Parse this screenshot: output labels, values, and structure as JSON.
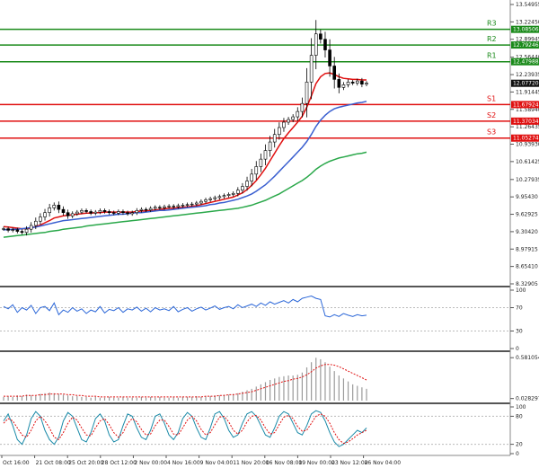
{
  "chart_data": {
    "type": "candlestick",
    "price_axis": {
      "ticks": [
        "13.54955",
        "13.22450",
        "12.89945",
        "12.56440",
        "12.23935",
        "11.91445",
        "11.58940",
        "11.26435",
        "10.93930",
        "10.61425",
        "10.27935",
        "9.95430",
        "9.62925",
        "9.30420",
        "8.97915",
        "8.65410",
        "8.32905"
      ],
      "ylim": [
        8.32905,
        13.54955
      ],
      "current_price": "12.07720"
    },
    "levels": [
      {
        "name": "R3",
        "value": "13.08506",
        "color": "#1a8a1a"
      },
      {
        "name": "R2",
        "value": "12.79246",
        "color": "#1a8a1a"
      },
      {
        "name": "R1",
        "value": "12.47988",
        "color": "#1a8a1a"
      },
      {
        "name": "S1",
        "value": "11.67924",
        "color": "#e01010"
      },
      {
        "name": "S2",
        "value": "11.37034",
        "color": "#e01010"
      },
      {
        "name": "S3",
        "value": "11.05274",
        "color": "#e01010"
      }
    ],
    "x_ticks": [
      "Oct 16:00",
      "21 Oct 08:00",
      "25 Oct 20:00",
      "28 Oct 12:00",
      "2 Nov 00:00",
      "4 Nov 16:00",
      "9 Nov 04:00",
      "11 Nov 20:00",
      "16 Nov 08:00",
      "19 Nov 00:00",
      "23 Nov 12:00",
      "26 Nov 04:00"
    ],
    "ohlc_close": [
      9.36,
      9.33,
      9.34,
      9.31,
      9.29,
      9.35,
      9.42,
      9.5,
      9.58,
      9.66,
      9.75,
      9.8,
      9.72,
      9.66,
      9.6,
      9.64,
      9.67,
      9.7,
      9.68,
      9.65,
      9.67,
      9.7,
      9.68,
      9.66,
      9.65,
      9.68,
      9.66,
      9.64,
      9.66,
      9.7,
      9.72,
      9.71,
      9.74,
      9.76,
      9.75,
      9.77,
      9.78,
      9.77,
      9.79,
      9.8,
      9.81,
      9.82,
      9.84,
      9.87,
      9.9,
      9.92,
      9.94,
      9.96,
      9.98,
      10.0,
      10.02,
      10.08,
      10.15,
      10.25,
      10.38,
      10.52,
      10.66,
      10.82,
      10.98,
      11.12,
      11.25,
      11.35,
      11.4,
      11.45,
      11.55,
      11.7,
      12.1,
      12.6,
      13.0,
      12.9,
      12.7,
      12.4,
      12.15,
      12.0,
      12.05,
      12.1,
      12.08,
      12.12,
      12.06,
      12.08
    ],
    "moving_averages": [
      {
        "color": "#e01010",
        "values": [
          9.4,
          9.39,
          9.38,
          9.37,
          9.36,
          9.36,
          9.37,
          9.4,
          9.43,
          9.47,
          9.51,
          9.56,
          9.58,
          9.6,
          9.61,
          9.62,
          9.63,
          9.64,
          9.65,
          9.65,
          9.66,
          9.66,
          9.67,
          9.67,
          9.67,
          9.67,
          9.67,
          9.67,
          9.67,
          9.68,
          9.69,
          9.69,
          9.7,
          9.71,
          9.72,
          9.73,
          9.74,
          9.74,
          9.75,
          9.76,
          9.77,
          9.78,
          9.79,
          9.81,
          9.83,
          9.85,
          9.87,
          9.89,
          9.91,
          9.93,
          9.95,
          9.99,
          10.03,
          10.09,
          10.17,
          10.26,
          10.37,
          10.49,
          10.63,
          10.77,
          10.91,
          11.04,
          11.15,
          11.25,
          11.35,
          11.46,
          11.63,
          11.84,
          12.07,
          12.2,
          12.26,
          12.27,
          12.24,
          12.2,
          12.17,
          12.16,
          12.15,
          12.15,
          12.14,
          12.14
        ]
      },
      {
        "color": "#3a5fd0",
        "values": [
          9.34,
          9.34,
          9.35,
          9.35,
          9.36,
          9.37,
          9.38,
          9.39,
          9.41,
          9.43,
          9.45,
          9.47,
          9.49,
          9.51,
          9.52,
          9.53,
          9.54,
          9.55,
          9.56,
          9.57,
          9.58,
          9.59,
          9.6,
          9.61,
          9.62,
          9.63,
          9.63,
          9.64,
          9.65,
          9.66,
          9.66,
          9.67,
          9.68,
          9.69,
          9.7,
          9.7,
          9.71,
          9.72,
          9.73,
          9.74,
          9.75,
          9.76,
          9.77,
          9.78,
          9.79,
          9.81,
          9.82,
          9.84,
          9.85,
          9.87,
          9.89,
          9.91,
          9.94,
          9.97,
          10.01,
          10.06,
          10.12,
          10.18,
          10.26,
          10.34,
          10.43,
          10.52,
          10.61,
          10.7,
          10.79,
          10.88,
          10.99,
          11.12,
          11.27,
          11.39,
          11.48,
          11.55,
          11.6,
          11.63,
          11.65,
          11.67,
          11.69,
          11.71,
          11.72,
          11.74
        ]
      },
      {
        "color": "#2aa84a",
        "values": [
          9.2,
          9.21,
          9.22,
          9.23,
          9.24,
          9.25,
          9.26,
          9.27,
          9.28,
          9.29,
          9.31,
          9.32,
          9.33,
          9.35,
          9.36,
          9.37,
          9.38,
          9.39,
          9.41,
          9.42,
          9.43,
          9.44,
          9.45,
          9.46,
          9.47,
          9.48,
          9.49,
          9.5,
          9.51,
          9.52,
          9.53,
          9.54,
          9.55,
          9.56,
          9.57,
          9.58,
          9.59,
          9.6,
          9.61,
          9.62,
          9.63,
          9.64,
          9.65,
          9.66,
          9.67,
          9.68,
          9.69,
          9.7,
          9.71,
          9.72,
          9.73,
          9.74,
          9.76,
          9.78,
          9.8,
          9.83,
          9.86,
          9.89,
          9.93,
          9.97,
          10.01,
          10.06,
          10.11,
          10.16,
          10.21,
          10.26,
          10.32,
          10.39,
          10.47,
          10.53,
          10.58,
          10.62,
          10.65,
          10.68,
          10.7,
          10.72,
          10.74,
          10.76,
          10.77,
          10.79
        ]
      }
    ],
    "indicator_1": {
      "ticks": [
        "100",
        "70",
        "30",
        "0"
      ],
      "ylim": [
        0,
        100
      ],
      "values": [
        72,
        68,
        75,
        62,
        70,
        66,
        74,
        60,
        70,
        72,
        65,
        78,
        58,
        66,
        62,
        70,
        64,
        68,
        60,
        66,
        63,
        72,
        61,
        67,
        65,
        70,
        62,
        68,
        66,
        71,
        64,
        69,
        63,
        70,
        66,
        68,
        65,
        72,
        63,
        67,
        70,
        64,
        68,
        71,
        66,
        69,
        73,
        67,
        70,
        72,
        68,
        75,
        70,
        73,
        76,
        72,
        78,
        74,
        80,
        76,
        79,
        82,
        78,
        84,
        80,
        86,
        88,
        90,
        86,
        84,
        56,
        54,
        58,
        55,
        60,
        57,
        55,
        58,
        56,
        57
      ]
    },
    "indicator_2": {
      "ticks": [
        "0.581054",
        "0.028297"
      ],
      "ylim": [
        0,
        0.62
      ],
      "bars": [
        0.05,
        0.06,
        0.05,
        0.07,
        0.06,
        0.08,
        0.07,
        0.06,
        0.09,
        0.1,
        0.11,
        0.1,
        0.09,
        0.08,
        0.07,
        0.06,
        0.06,
        0.05,
        0.05,
        0.04,
        0.05,
        0.04,
        0.04,
        0.05,
        0.04,
        0.04,
        0.05,
        0.04,
        0.04,
        0.04,
        0.05,
        0.04,
        0.05,
        0.04,
        0.05,
        0.04,
        0.04,
        0.05,
        0.04,
        0.05,
        0.05,
        0.05,
        0.06,
        0.05,
        0.06,
        0.06,
        0.07,
        0.07,
        0.08,
        0.08,
        0.09,
        0.1,
        0.12,
        0.14,
        0.16,
        0.19,
        0.22,
        0.25,
        0.28,
        0.3,
        0.32,
        0.33,
        0.34,
        0.34,
        0.35,
        0.38,
        0.45,
        0.52,
        0.58,
        0.56,
        0.52,
        0.46,
        0.4,
        0.34,
        0.3,
        0.26,
        0.22,
        0.2,
        0.18,
        0.16
      ],
      "signal": [
        0.06,
        0.06,
        0.06,
        0.06,
        0.06,
        0.07,
        0.07,
        0.07,
        0.08,
        0.08,
        0.09,
        0.09,
        0.09,
        0.09,
        0.08,
        0.08,
        0.07,
        0.07,
        0.06,
        0.06,
        0.06,
        0.05,
        0.05,
        0.05,
        0.05,
        0.05,
        0.05,
        0.05,
        0.05,
        0.05,
        0.05,
        0.05,
        0.05,
        0.05,
        0.05,
        0.05,
        0.05,
        0.05,
        0.05,
        0.05,
        0.05,
        0.05,
        0.05,
        0.05,
        0.06,
        0.06,
        0.06,
        0.07,
        0.07,
        0.08,
        0.08,
        0.09,
        0.1,
        0.11,
        0.12,
        0.14,
        0.16,
        0.18,
        0.2,
        0.22,
        0.24,
        0.26,
        0.27,
        0.29,
        0.3,
        0.32,
        0.35,
        0.39,
        0.44,
        0.47,
        0.49,
        0.49,
        0.48,
        0.46,
        0.43,
        0.4,
        0.37,
        0.34,
        0.31,
        0.28
      ]
    },
    "indicator_3": {
      "ticks": [
        "100",
        "80",
        "20",
        "0"
      ],
      "ylim": [
        0,
        100
      ],
      "main": [
        70,
        85,
        60,
        30,
        20,
        40,
        75,
        90,
        80,
        50,
        30,
        20,
        35,
        70,
        88,
        80,
        55,
        30,
        25,
        45,
        75,
        85,
        70,
        40,
        25,
        30,
        60,
        85,
        80,
        55,
        35,
        30,
        50,
        80,
        85,
        65,
        40,
        30,
        45,
        75,
        88,
        80,
        55,
        35,
        30,
        55,
        85,
        90,
        75,
        50,
        35,
        40,
        65,
        85,
        90,
        80,
        60,
        40,
        35,
        55,
        80,
        90,
        85,
        65,
        45,
        40,
        60,
        85,
        92,
        88,
        70,
        45,
        25,
        15,
        20,
        30,
        40,
        50,
        45,
        55
      ],
      "signal": [
        65,
        75,
        70,
        55,
        40,
        35,
        50,
        70,
        80,
        70,
        55,
        35,
        30,
        45,
        65,
        78,
        72,
        55,
        40,
        38,
        55,
        70,
        75,
        62,
        45,
        35,
        45,
        65,
        75,
        68,
        52,
        40,
        42,
        60,
        72,
        72,
        58,
        42,
        40,
        55,
        72,
        80,
        70,
        52,
        40,
        45,
        62,
        78,
        80,
        68,
        50,
        42,
        50,
        68,
        80,
        82,
        72,
        55,
        42,
        45,
        62,
        78,
        82,
        75,
        58,
        48,
        50,
        65,
        80,
        85,
        80,
        65,
        45,
        30,
        22,
        25,
        32,
        40,
        45,
        50
      ]
    },
    "hlines": {
      "price_pane_bottom": 8.32905,
      "ind1_mid": "70",
      "ind3_levels": [
        "80",
        "20"
      ]
    }
  }
}
